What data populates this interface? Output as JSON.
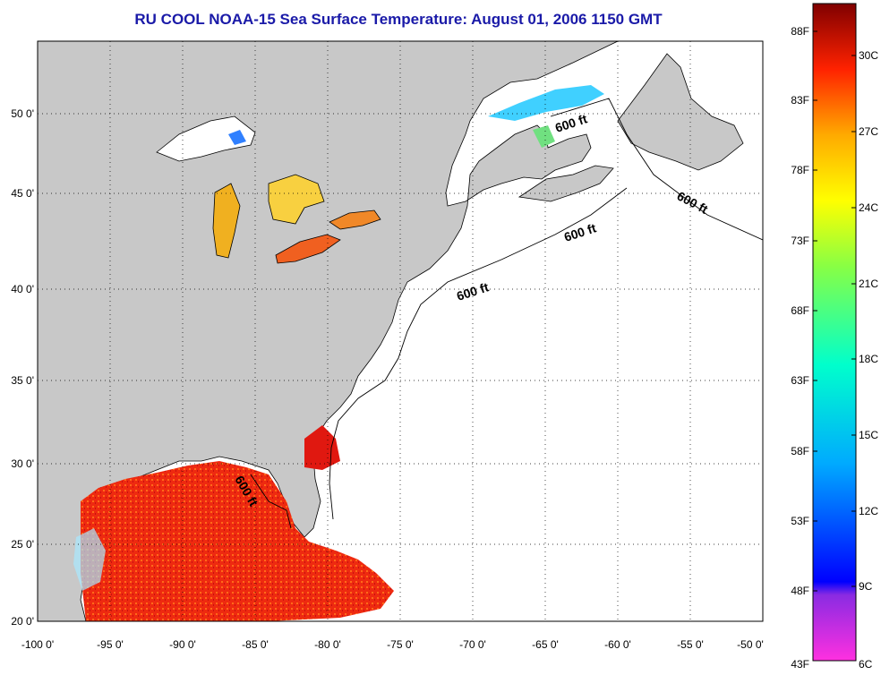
{
  "title": "RU COOL  NOAA-15  Sea Surface Temperature:  August 01, 2006 1150 GMT",
  "map": {
    "lon_labels": [
      "-100 0'",
      "-95 0'",
      "-90 0'",
      "-85 0'",
      "-80 0'",
      "-75 0'",
      "-70 0'",
      "-65 0'",
      "-60 0'",
      "-55 0'",
      "-50 0'"
    ],
    "lat_labels": [
      "50 0'",
      "45 0'",
      "40 0'",
      "35 0'",
      "30 0'",
      "25 0'",
      "20 0'"
    ],
    "contour_label": "600 ft",
    "colors": {
      "land": "#c8c8c8",
      "ocean_no_data": "#ffffff",
      "grid": "#000000"
    }
  },
  "colorbar": {
    "fahrenheit_labels": [
      "88F",
      "83F",
      "78F",
      "73F",
      "68F",
      "63F",
      "58F",
      "53F",
      "48F",
      "43F"
    ],
    "celsius_labels": [
      "30C",
      "27C",
      "24C",
      "21C",
      "18C",
      "15C",
      "12C",
      "9C",
      "6C"
    ]
  }
}
